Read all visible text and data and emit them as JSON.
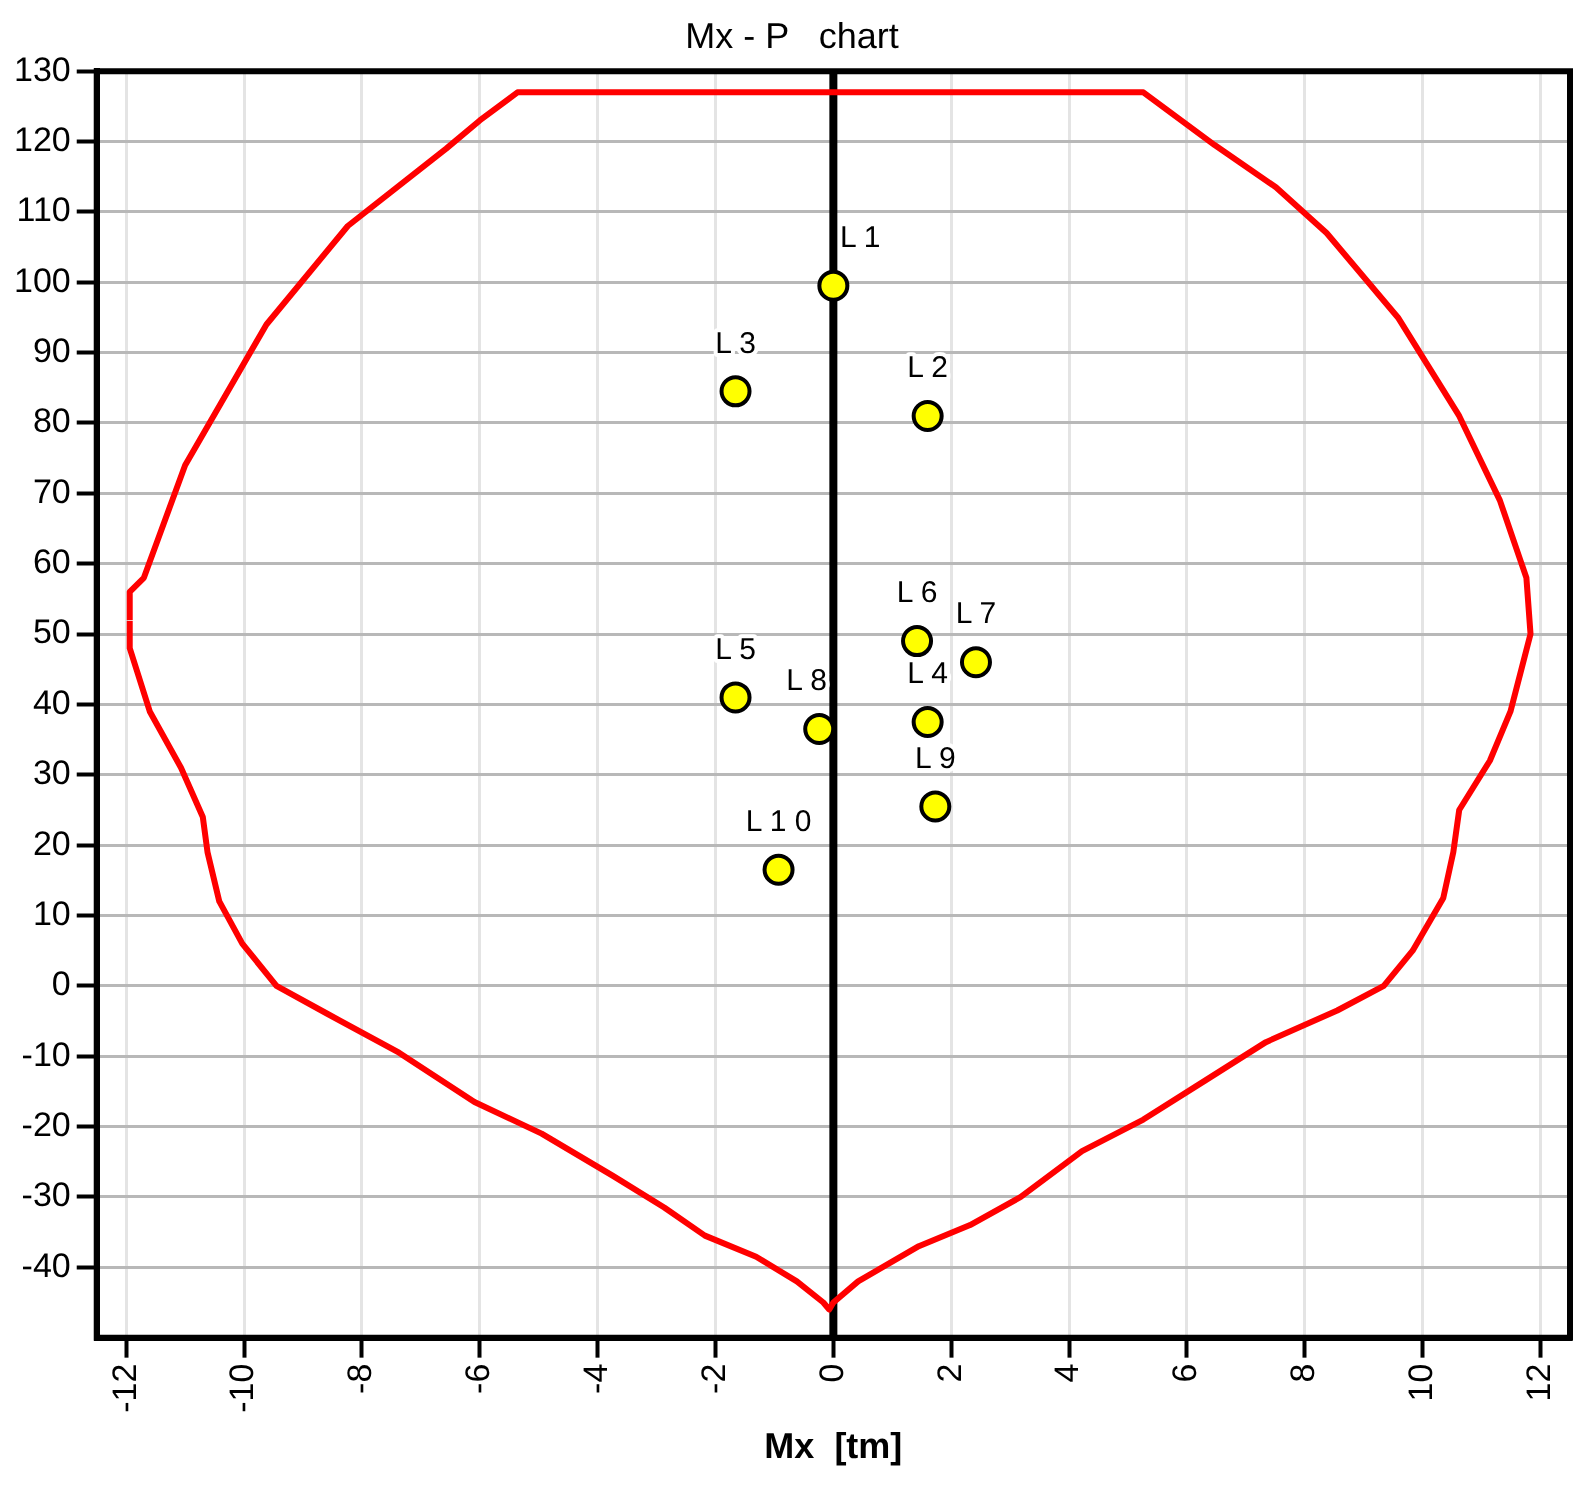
{
  "chart_data": {
    "type": "scatter",
    "title": "Mx - P   chart",
    "xlabel": "Mx  [tm]",
    "xlim": [
      -12.5,
      12.5
    ],
    "xticks": [
      -12,
      -10,
      -8,
      -6,
      -4,
      -2,
      0,
      2,
      4,
      6,
      8,
      10,
      12
    ],
    "ylim": [
      -50,
      130
    ],
    "yticks": [
      -40,
      -30,
      -20,
      -10,
      0,
      10,
      20,
      30,
      40,
      50,
      60,
      70,
      80,
      90,
      100,
      110,
      120,
      130
    ],
    "grid": true,
    "legend": false,
    "marker": "circle",
    "ref_lines": [
      {
        "axis": "x",
        "value": 0,
        "color": "#000000"
      }
    ],
    "series": [
      {
        "type": "line",
        "color": "#ff0000",
        "marker": "none",
        "x": [
          -11.94,
          -11.94,
          -11.7,
          -11.0,
          -9.62,
          -8.24,
          -6.57,
          -6.0,
          -5.36,
          5.26,
          6.47,
          7.51,
          8.37,
          9.58,
          10.62,
          11.31,
          11.76,
          11.83,
          11.49,
          11.14,
          10.62,
          10.52,
          10.35,
          9.83,
          9.34,
          8.55,
          7.34,
          6.3,
          5.26,
          4.22,
          3.18,
          2.32,
          1.45,
          0.42,
          0,
          -0.07,
          -0.17,
          -0.62,
          -1.31,
          -2.18,
          -2.87,
          -3.74,
          -4.95,
          -6.09,
          -7.37,
          -8.58,
          -9.45,
          -10.03,
          -10.42,
          -10.62,
          -10.7,
          -11.07,
          -11.6,
          -11.94,
          -11.94
        ],
        "values": [
          52,
          56,
          58,
          74,
          94,
          108,
          119,
          123,
          127,
          127,
          119.5,
          113.5,
          107,
          95,
          81,
          69,
          58,
          50,
          39,
          32,
          25,
          19,
          12.5,
          5,
          0,
          -3.5,
          -8,
          -13.5,
          -19,
          -23.5,
          -30,
          -34,
          -37,
          -42,
          -45,
          -46,
          -45,
          -42,
          -38.5,
          -35.5,
          -31.5,
          -27,
          -21,
          -16.5,
          -9.5,
          -4,
          0,
          6,
          12,
          19,
          24,
          31,
          39,
          48,
          51.9
        ]
      },
      {
        "type": "scatter",
        "color": "#ffff00",
        "x": [
          0,
          1.6,
          -1.66,
          1.6,
          -1.66,
          1.42,
          2.42,
          -0.24,
          1.73,
          -0.93
        ],
        "values": [
          99.5,
          81,
          84.5,
          37.5,
          41,
          49,
          46,
          36.5,
          25.5,
          16.5
        ]
      }
    ],
    "annotations": [
      {
        "text": "L 1",
        "x": 0,
        "y": 99.5
      },
      {
        "text": "L 2",
        "x": 1.6,
        "y": 81
      },
      {
        "text": "L 3",
        "x": -1.66,
        "y": 84.5
      },
      {
        "text": "L 4",
        "x": 1.6,
        "y": 37.5
      },
      {
        "text": "L 5",
        "x": -1.66,
        "y": 41
      },
      {
        "text": "L 6",
        "x": 1.42,
        "y": 49
      },
      {
        "text": "L 7",
        "x": 2.42,
        "y": 46
      },
      {
        "text": "L 8",
        "x": -0.24,
        "y": 36.5
      },
      {
        "text": "L 9",
        "x": 1.73,
        "y": 25.5
      },
      {
        "text": "L 1 0",
        "x": -0.93,
        "y": 16.5
      }
    ]
  }
}
